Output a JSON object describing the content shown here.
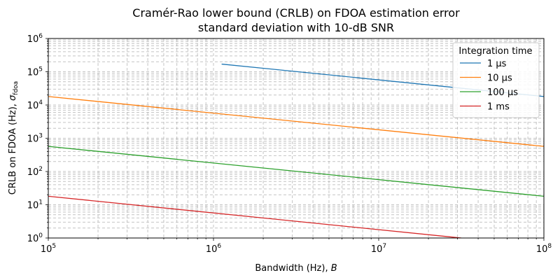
{
  "chart_data": {
    "type": "line",
    "title_line1": "Cramér-Rao lower bound (CRLB) on FDOA estimation error",
    "title_line2": "standard deviation with 10-dB SNR",
    "xlabel": "Bandwidth (Hz), ",
    "xlabel_var": "B",
    "ylabel": "CRLB on FDOA (Hz), ",
    "ylabel_sym": "σ",
    "ylabel_sub": "fdoa",
    "x_scale": "log",
    "y_scale": "log",
    "xlim": [
      100000,
      100000000
    ],
    "ylim": [
      1,
      1000000
    ],
    "x_ticks": [
      {
        "value": 100000,
        "base": "10",
        "exp": "5"
      },
      {
        "value": 1000000,
        "base": "10",
        "exp": "6"
      },
      {
        "value": 10000000,
        "base": "10",
        "exp": "7"
      },
      {
        "value": 100000000,
        "base": "10",
        "exp": "8"
      }
    ],
    "y_ticks": [
      {
        "value": 1,
        "base": "10",
        "exp": "0"
      },
      {
        "value": 10,
        "base": "10",
        "exp": "1"
      },
      {
        "value": 100,
        "base": "10",
        "exp": "2"
      },
      {
        "value": 1000,
        "base": "10",
        "exp": "3"
      },
      {
        "value": 10000,
        "base": "10",
        "exp": "4"
      },
      {
        "value": 100000,
        "base": "10",
        "exp": "5"
      },
      {
        "value": 1000000,
        "base": "10",
        "exp": "6"
      }
    ],
    "grid": true,
    "legend_title": "Integration time",
    "legend_position": "top-right",
    "series": [
      {
        "name": "1 μs",
        "color": "#1f77b4",
        "x": [
          1120000,
          100000000
        ],
        "y": [
          170000,
          18000
        ]
      },
      {
        "name": "10 μs",
        "color": "#ff7f0e",
        "x": [
          100000,
          100000000
        ],
        "y": [
          18000,
          570
        ]
      },
      {
        "name": "100 μs",
        "color": "#2ca02c",
        "x": [
          100000,
          100000000
        ],
        "y": [
          570,
          18
        ]
      },
      {
        "name": "1 ms",
        "color": "#d62728",
        "x": [
          100000,
          31600000
        ],
        "y": [
          18,
          1
        ]
      }
    ]
  }
}
